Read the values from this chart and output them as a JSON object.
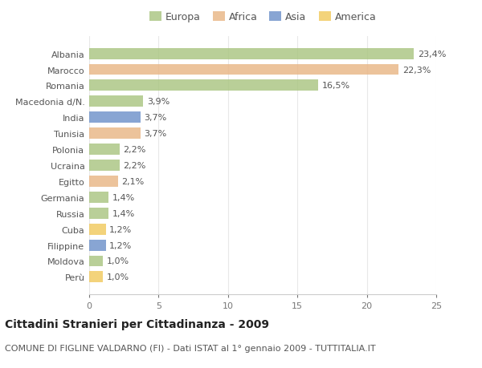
{
  "categories": [
    "Albania",
    "Marocco",
    "Romania",
    "Macedonia d/N.",
    "India",
    "Tunisia",
    "Polonia",
    "Ucraina",
    "Egitto",
    "Germania",
    "Russia",
    "Cuba",
    "Filippine",
    "Moldova",
    "Perù"
  ],
  "values": [
    23.4,
    22.3,
    16.5,
    3.9,
    3.7,
    3.7,
    2.2,
    2.2,
    2.1,
    1.4,
    1.4,
    1.2,
    1.2,
    1.0,
    1.0
  ],
  "labels": [
    "23,4%",
    "22,3%",
    "16,5%",
    "3,9%",
    "3,7%",
    "3,7%",
    "2,2%",
    "2,2%",
    "2,1%",
    "1,4%",
    "1,4%",
    "1,2%",
    "1,2%",
    "1,0%",
    "1,0%"
  ],
  "continents": [
    "Europa",
    "Africa",
    "Europa",
    "Europa",
    "Asia",
    "Africa",
    "Europa",
    "Europa",
    "Africa",
    "Europa",
    "Europa",
    "America",
    "Asia",
    "Europa",
    "America"
  ],
  "continent_colors": {
    "Europa": "#a8c47e",
    "Africa": "#e8b482",
    "Asia": "#6b8fc8",
    "America": "#f0c85a"
  },
  "legend_order": [
    "Europa",
    "Africa",
    "Asia",
    "America"
  ],
  "background_color": "#ffffff",
  "plot_bg_color": "#ffffff",
  "title": "Cittadini Stranieri per Cittadinanza - 2009",
  "subtitle": "COMUNE DI FIGLINE VALDARNO (FI) - Dati ISTAT al 1° gennaio 2009 - TUTTITALIA.IT",
  "xlim": [
    0,
    25
  ],
  "xticks": [
    0,
    5,
    10,
    15,
    20,
    25
  ],
  "grid_color": "#e8e8e8",
  "bar_height": 0.7,
  "title_fontsize": 10,
  "subtitle_fontsize": 8,
  "label_fontsize": 8,
  "tick_fontsize": 8,
  "legend_fontsize": 9,
  "bar_alpha": 0.8
}
